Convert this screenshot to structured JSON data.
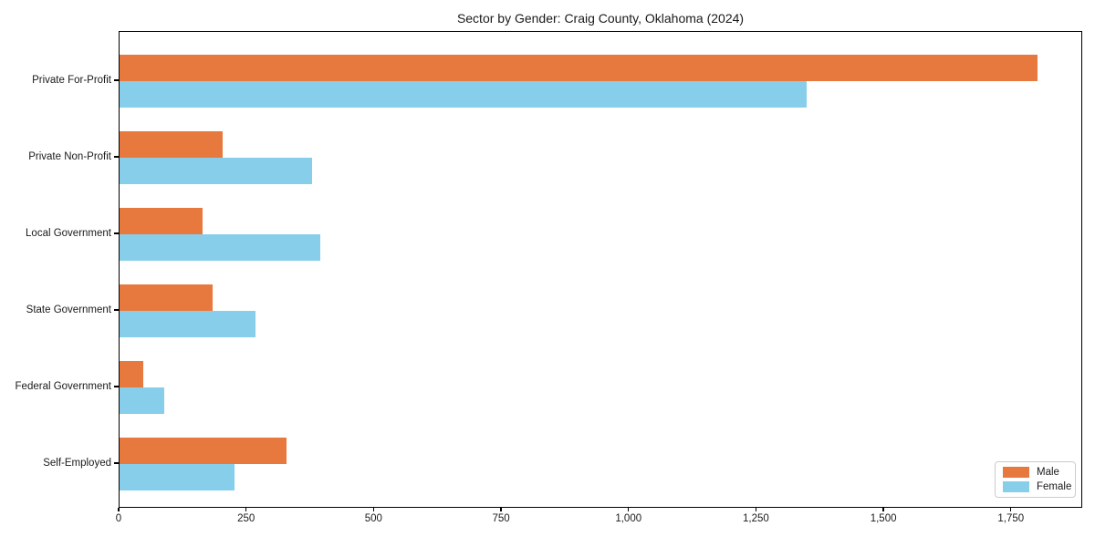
{
  "title": "Sector by Gender: Craig County, Oklahoma (2024)",
  "chart_data": {
    "type": "bar",
    "orientation": "horizontal",
    "title": "Sector by Gender: Craig County, Oklahoma (2024)",
    "categories": [
      "Private For-Profit",
      "Private Non-Profit",
      "Local Government",
      "State Government",
      "Federal Government",
      "Self-Employed"
    ],
    "series": [
      {
        "name": "Male",
        "color": "#E8793E",
        "values": [
          1800,
          203,
          163,
          182,
          47,
          328
        ]
      },
      {
        "name": "Female",
        "color": "#87CEEB",
        "values": [
          1348,
          378,
          393,
          266,
          88,
          225
        ]
      }
    ],
    "xlabel": "",
    "ylabel": "",
    "xlim": [
      0,
      1890
    ],
    "x_ticks": [
      0,
      250,
      500,
      750,
      1000,
      1250,
      1500,
      1750
    ],
    "x_tick_labels": [
      "0",
      "250",
      "500",
      "750",
      "1,000",
      "1,250",
      "1,500",
      "1,750"
    ],
    "grid": false,
    "legend_position": "lower right"
  }
}
